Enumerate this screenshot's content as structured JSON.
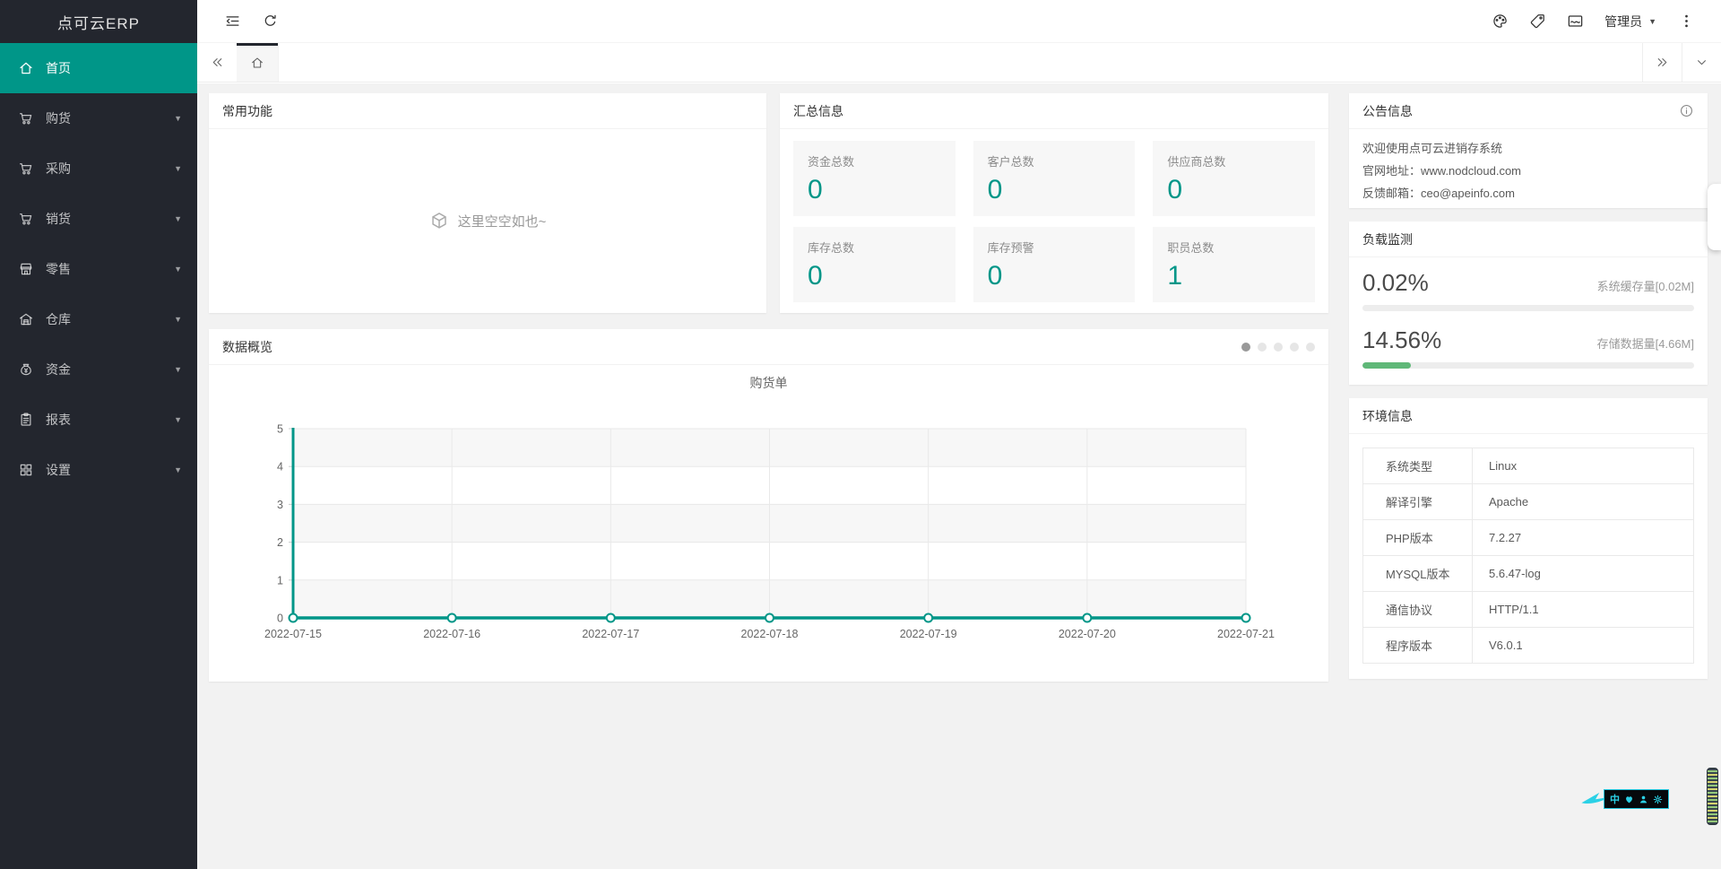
{
  "app": {
    "logo_text": "点可云ERP"
  },
  "topbar": {
    "user_label": "管理员",
    "icons": [
      "collapse",
      "refresh",
      "theme",
      "tag",
      "card",
      "more"
    ]
  },
  "sidebar": {
    "items": [
      {
        "key": "home",
        "label": "首页",
        "icon": "home",
        "active": true,
        "caret": false
      },
      {
        "key": "purchase",
        "label": "购货",
        "icon": "cart",
        "active": false,
        "caret": true
      },
      {
        "key": "procure",
        "label": "采购",
        "icon": "cart",
        "active": false,
        "caret": true
      },
      {
        "key": "sale",
        "label": "销货",
        "icon": "cart",
        "active": false,
        "caret": true
      },
      {
        "key": "retail",
        "label": "零售",
        "icon": "shop",
        "active": false,
        "caret": true
      },
      {
        "key": "warehouse",
        "label": "仓库",
        "icon": "warehouse",
        "active": false,
        "caret": true
      },
      {
        "key": "funds",
        "label": "资金",
        "icon": "money",
        "active": false,
        "caret": true
      },
      {
        "key": "report",
        "label": "报表",
        "icon": "report",
        "active": false,
        "caret": true
      },
      {
        "key": "settings",
        "label": "设置",
        "icon": "grid",
        "active": false,
        "caret": true
      }
    ]
  },
  "panels": {
    "common": {
      "title": "常用功能",
      "empty_text": "这里空空如也~"
    },
    "summary": {
      "title": "汇总信息",
      "cards": [
        {
          "label": "资金总数",
          "value": "0"
        },
        {
          "label": "客户总数",
          "value": "0"
        },
        {
          "label": "供应商总数",
          "value": "0"
        },
        {
          "label": "库存总数",
          "value": "0"
        },
        {
          "label": "库存预警",
          "value": "0"
        },
        {
          "label": "职员总数",
          "value": "1"
        }
      ]
    },
    "overview": {
      "title": "数据概览",
      "dot_count": 5,
      "active_dot": 0
    },
    "notice": {
      "title": "公告信息",
      "lines": [
        "欢迎使用点可云进销存系统",
        "官网地址：www.nodcloud.com",
        "反馈邮箱：ceo@apeinfo.com"
      ]
    },
    "load": {
      "title": "负载监测",
      "meters": [
        {
          "percent_text": "0.02%",
          "percent": 0.02,
          "label": "系统缓存量[0.02M]"
        },
        {
          "percent_text": "14.56%",
          "percent": 14.56,
          "label": "存储数据量[4.66M]"
        }
      ]
    },
    "env": {
      "title": "环境信息",
      "rows": [
        {
          "label": "系统类型",
          "value": "Linux"
        },
        {
          "label": "解译引擎",
          "value": "Apache"
        },
        {
          "label": "PHP版本",
          "value": "7.2.27"
        },
        {
          "label": "MYSQL版本",
          "value": "5.6.47-log"
        },
        {
          "label": "通信协议",
          "value": "HTTP/1.1"
        },
        {
          "label": "程序版本",
          "value": "V6.0.1"
        }
      ]
    }
  },
  "chart_data": {
    "type": "line",
    "title": "购货单",
    "x": [
      "2022-07-15",
      "2022-07-16",
      "2022-07-17",
      "2022-07-18",
      "2022-07-19",
      "2022-07-20",
      "2022-07-21"
    ],
    "series": [
      {
        "name": "购货单",
        "values": [
          0,
          0,
          0,
          0,
          0,
          0,
          0
        ]
      }
    ],
    "ylim": [
      0,
      5
    ],
    "yticks": [
      0,
      1,
      2,
      3,
      4,
      5
    ],
    "grid": true,
    "split_area": true,
    "legend": "none",
    "line_color": "#009688"
  },
  "colors": {
    "accent": "#009688",
    "sidebar_bg": "#23262e",
    "progress_green": "#5FB878",
    "page_bg": "#f2f2f2",
    "band_gray": "#f7f7f7",
    "grid_line": "#e9e9e9"
  },
  "extension_badge": {
    "zh_char": "中"
  }
}
